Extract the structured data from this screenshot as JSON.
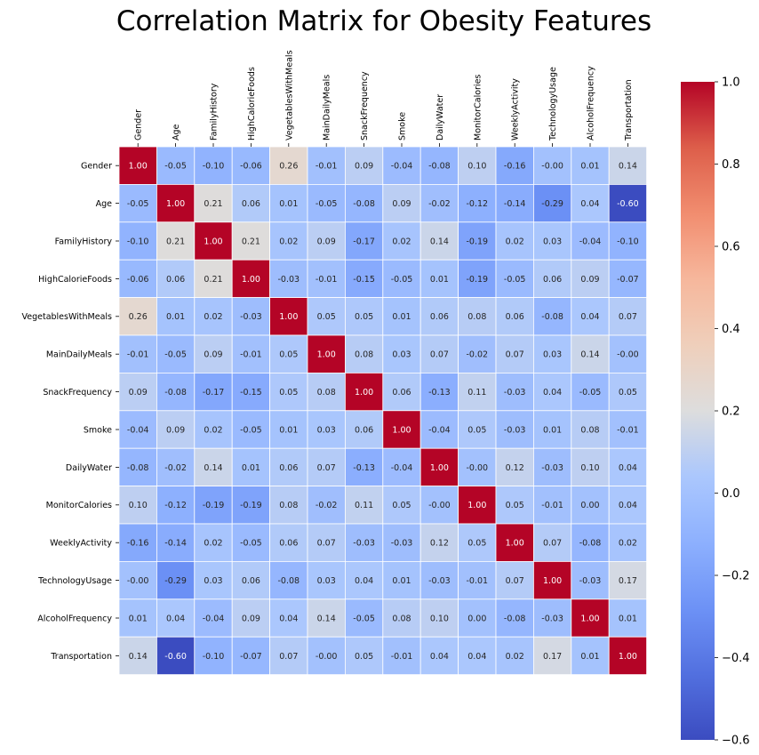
{
  "chart_data": {
    "type": "heatmap",
    "title": "Correlation Matrix for Obesity Features",
    "xlabel": "",
    "ylabel": "",
    "labels": [
      "Gender",
      "Age",
      "FamilyHistory",
      "HighCalorieFoods",
      "VegetablesWithMeals",
      "MainDailyMeals",
      "SnackFrequency",
      "Smoke",
      "DailyWater",
      "MonitorCalories",
      "WeeklyActivity",
      "TechnologyUsage",
      "AlcoholFrequency",
      "Transportation"
    ],
    "matrix": [
      [
        1.0,
        -0.05,
        -0.1,
        -0.06,
        0.26,
        -0.01,
        0.09,
        -0.04,
        -0.08,
        0.1,
        -0.16,
        -0.0,
        0.01,
        0.14
      ],
      [
        -0.05,
        1.0,
        0.21,
        0.06,
        0.01,
        -0.05,
        -0.08,
        0.09,
        -0.02,
        -0.12,
        -0.14,
        -0.29,
        0.04,
        -0.6
      ],
      [
        -0.1,
        0.21,
        1.0,
        0.21,
        0.02,
        0.09,
        -0.17,
        0.02,
        0.14,
        -0.19,
        0.02,
        0.03,
        -0.04,
        -0.1
      ],
      [
        -0.06,
        0.06,
        0.21,
        1.0,
        -0.03,
        -0.01,
        -0.15,
        -0.05,
        0.01,
        -0.19,
        -0.05,
        0.06,
        0.09,
        -0.07
      ],
      [
        0.26,
        0.01,
        0.02,
        -0.03,
        1.0,
        0.05,
        0.05,
        0.01,
        0.06,
        0.08,
        0.06,
        -0.08,
        0.04,
        0.07
      ],
      [
        -0.01,
        -0.05,
        0.09,
        -0.01,
        0.05,
        1.0,
        0.08,
        0.03,
        0.07,
        -0.02,
        0.07,
        0.03,
        0.14,
        -0.0
      ],
      [
        0.09,
        -0.08,
        -0.17,
        -0.15,
        0.05,
        0.08,
        1.0,
        0.06,
        -0.13,
        0.11,
        -0.03,
        0.04,
        -0.05,
        0.05
      ],
      [
        -0.04,
        0.09,
        0.02,
        -0.05,
        0.01,
        0.03,
        0.06,
        1.0,
        -0.04,
        0.05,
        -0.03,
        0.01,
        0.08,
        -0.01
      ],
      [
        -0.08,
        -0.02,
        0.14,
        0.01,
        0.06,
        0.07,
        -0.13,
        -0.04,
        1.0,
        -0.0,
        0.12,
        -0.03,
        0.1,
        0.04
      ],
      [
        0.1,
        -0.12,
        -0.19,
        -0.19,
        0.08,
        -0.02,
        0.11,
        0.05,
        -0.0,
        1.0,
        0.05,
        -0.01,
        0.0,
        0.04
      ],
      [
        -0.16,
        -0.14,
        0.02,
        -0.05,
        0.06,
        0.07,
        -0.03,
        -0.03,
        0.12,
        0.05,
        1.0,
        0.07,
        -0.08,
        0.02
      ],
      [
        -0.0,
        -0.29,
        0.03,
        0.06,
        -0.08,
        0.03,
        0.04,
        0.01,
        -0.03,
        -0.01,
        0.07,
        1.0,
        -0.03,
        0.17
      ],
      [
        0.01,
        0.04,
        -0.04,
        0.09,
        0.04,
        0.14,
        -0.05,
        0.08,
        0.1,
        0.0,
        -0.08,
        -0.03,
        1.0,
        0.01
      ],
      [
        0.14,
        -0.6,
        -0.1,
        -0.07,
        0.07,
        -0.0,
        0.05,
        -0.01,
        0.04,
        0.04,
        0.02,
        0.17,
        0.01,
        1.0
      ]
    ],
    "vmin": -0.6,
    "vmax": 1.0,
    "colormap": "coolwarm",
    "colorbar_ticks": [
      "1.0",
      "0.8",
      "0.6",
      "0.4",
      "0.2",
      "0.0",
      "−0.2",
      "−0.4",
      "−0.6"
    ],
    "x_tick_position": "top",
    "grid": false,
    "legend": "colorbar-right"
  }
}
